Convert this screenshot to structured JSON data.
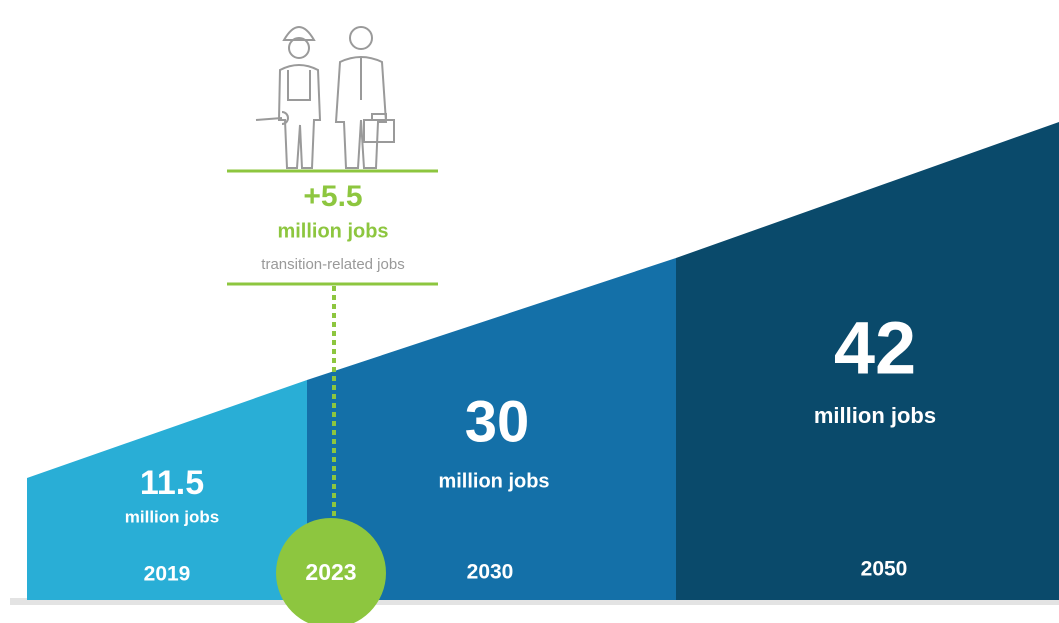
{
  "callout": {
    "value": "+5.5",
    "unit": "million jobs",
    "note": "transition-related jobs"
  },
  "stages": [
    {
      "value": "11.5",
      "unit": "million jobs",
      "year": "2019"
    },
    {
      "value": "30",
      "unit": "million jobs",
      "year": "2030"
    },
    {
      "value": "42",
      "unit": "million jobs",
      "year": "2050"
    }
  ],
  "marker": {
    "year": "2023"
  }
}
